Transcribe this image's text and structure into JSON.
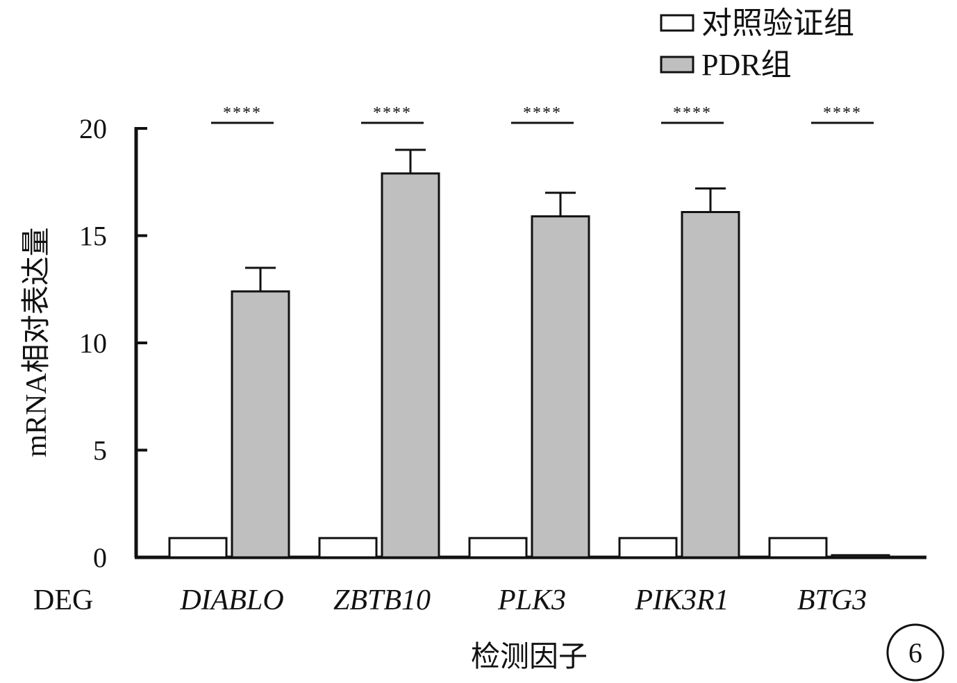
{
  "chart_data": {
    "type": "bar",
    "ylabel": "mRNA相对表达量",
    "xlabel": "检测因子",
    "row_label": "DEG",
    "categories": [
      "DIABLO",
      "ZBTB10",
      "PLK3",
      "PIK3R1",
      "BTG3"
    ],
    "ylim": [
      0,
      20
    ],
    "yticks": [
      0,
      5,
      10,
      15,
      20
    ],
    "series": [
      {
        "name": "对照验证组",
        "color": "#ffffff",
        "values": [
          0.9,
          0.9,
          0.9,
          0.9,
          0.9
        ],
        "errors": [
          0,
          0,
          0,
          0,
          0
        ]
      },
      {
        "name": "PDR组",
        "color": "#bfbfbf",
        "values": [
          12.4,
          17.9,
          15.9,
          16.1,
          0.1
        ],
        "errors": [
          1.1,
          1.1,
          1.1,
          1.1,
          0
        ]
      }
    ],
    "significance": [
      "****",
      "****",
      "****",
      "****",
      "****"
    ],
    "legend_position": "top-right",
    "grid": false,
    "panel_label": "6"
  }
}
